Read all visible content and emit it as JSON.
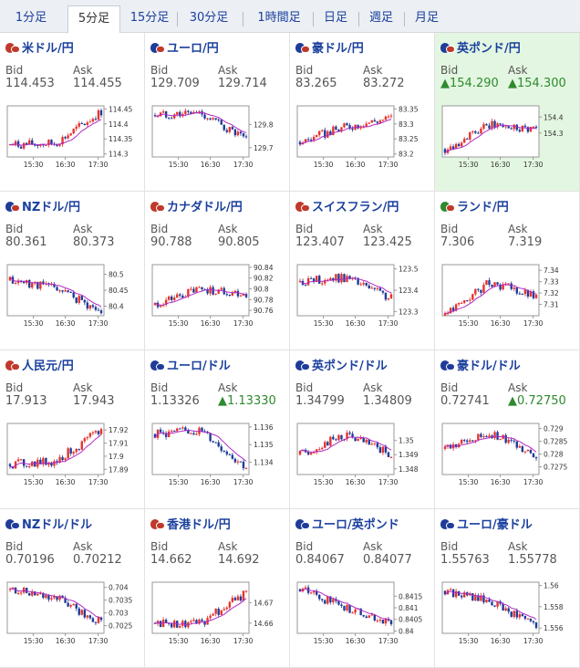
{
  "tabs": [
    {
      "label": "1分足",
      "active": false
    },
    {
      "label": "5分足",
      "active": true
    },
    {
      "label": "15分足",
      "active": false
    },
    {
      "label": "30分足",
      "active": false
    },
    {
      "label": "1時間足",
      "active": false
    },
    {
      "label": "日足",
      "active": false
    },
    {
      "label": "週足",
      "active": false
    },
    {
      "label": "月足",
      "active": false
    }
  ],
  "bid_label": "Bid",
  "ask_label": "Ask",
  "colors": {
    "up": "#e8322d",
    "down": "#1f3c99",
    "ma": "#b02bc4",
    "link": "#1a3f9e"
  },
  "x_ticks": [
    "15:30",
    "16:30",
    "17:30"
  ],
  "pairs": [
    {
      "name": "米ドル/円",
      "bid": "114.453",
      "ask": "114.455",
      "bid_up": false,
      "ask_up": false,
      "highlight": false,
      "flag": [
        "#c0392b",
        "#c0392b"
      ],
      "y_ticks": [
        "114.45",
        "114.4",
        "114.35",
        "114.3"
      ],
      "chart_data": {
        "type": "line",
        "x": [
          "15:30",
          "16:30",
          "17:30"
        ],
        "y": [
          114.33,
          114.335,
          114.44
        ],
        "ylim": [
          114.29,
          114.46
        ]
      }
    },
    {
      "name": "ユーロ/円",
      "bid": "129.709",
      "ask": "129.714",
      "bid_up": false,
      "ask_up": false,
      "highlight": false,
      "flag": [
        "#1f3c99",
        "#c0392b"
      ],
      "y_ticks": [
        "129.8",
        "129.7"
      ],
      "chart_data": {
        "type": "line",
        "x": [
          "15:30",
          "16:30",
          "17:30"
        ],
        "y": [
          129.84,
          129.85,
          129.73
        ],
        "ylim": [
          129.66,
          129.88
        ]
      }
    },
    {
      "name": "豪ドル/円",
      "bid": "83.265",
      "ask": "83.272",
      "bid_up": false,
      "ask_up": false,
      "highlight": false,
      "flag": [
        "#1f3c99",
        "#c0392b"
      ],
      "y_ticks": [
        "83.35",
        "83.3",
        "83.25",
        "83.2"
      ],
      "chart_data": {
        "type": "line",
        "x": [
          "15:30",
          "16:30",
          "17:30"
        ],
        "y": [
          83.24,
          83.29,
          83.32
        ],
        "ylim": [
          83.19,
          83.36
        ]
      }
    },
    {
      "name": "英ポンド/円",
      "bid": "▲154.290",
      "ask": "▲154.300",
      "bid_up": true,
      "ask_up": true,
      "highlight": true,
      "flag": [
        "#1f3c99",
        "#c0392b"
      ],
      "y_ticks": [
        "154.4",
        "154.3"
      ],
      "chart_data": {
        "type": "line",
        "x": [
          "15:30",
          "16:30",
          "17:30"
        ],
        "y": [
          154.2,
          154.35,
          154.33
        ],
        "ylim": [
          154.15,
          154.47
        ]
      }
    },
    {
      "name": "NZドル/円",
      "bid": "80.361",
      "ask": "80.373",
      "bid_up": false,
      "ask_up": false,
      "highlight": false,
      "flag": [
        "#1f3c99",
        "#c0392b"
      ],
      "y_ticks": [
        "80.5",
        "80.45",
        "80.4"
      ],
      "chart_data": {
        "type": "line",
        "x": [
          "15:30",
          "16:30",
          "17:30"
        ],
        "y": [
          80.48,
          80.46,
          80.38
        ],
        "ylim": [
          80.37,
          80.53
        ]
      }
    },
    {
      "name": "カナダドル/円",
      "bid": "90.788",
      "ask": "90.805",
      "bid_up": false,
      "ask_up": false,
      "highlight": false,
      "flag": [
        "#c0392b",
        "#c0392b"
      ],
      "y_ticks": [
        "90.84",
        "90.82",
        "90.8",
        "90.78",
        "90.76"
      ],
      "chart_data": {
        "type": "line",
        "x": [
          "15:30",
          "16:30",
          "17:30"
        ],
        "y": [
          90.77,
          90.8,
          90.79
        ],
        "ylim": [
          90.75,
          90.845
        ]
      }
    },
    {
      "name": "スイスフラン/円",
      "bid": "123.407",
      "ask": "123.425",
      "bid_up": false,
      "ask_up": false,
      "highlight": false,
      "flag": [
        "#c0392b",
        "#c0392b"
      ],
      "y_ticks": [
        "123.5",
        "123.4",
        "123.3"
      ],
      "chart_data": {
        "type": "line",
        "x": [
          "15:30",
          "16:30",
          "17:30"
        ],
        "y": [
          123.44,
          123.46,
          123.36
        ],
        "ylim": [
          123.28,
          123.52
        ]
      }
    },
    {
      "name": "ランド/円",
      "bid": "7.306",
      "ask": "7.319",
      "bid_up": false,
      "ask_up": false,
      "highlight": false,
      "flag": [
        "#2e8a2e",
        "#c0392b"
      ],
      "y_ticks": [
        "7.34",
        "7.33",
        "7.32",
        "7.31"
      ],
      "chart_data": {
        "type": "line",
        "x": [
          "15:30",
          "16:30",
          "17:30"
        ],
        "y": [
          7.3,
          7.33,
          7.316
        ],
        "ylim": [
          7.3,
          7.345
        ]
      }
    },
    {
      "name": "人民元/円",
      "bid": "17.913",
      "ask": "17.943",
      "bid_up": false,
      "ask_up": false,
      "highlight": false,
      "flag": [
        "#c0392b",
        "#c0392b"
      ],
      "y_ticks": [
        "17.92",
        "17.91",
        "17.9",
        "17.89"
      ],
      "chart_data": {
        "type": "line",
        "x": [
          "15:30",
          "16:30",
          "17:30"
        ],
        "y": [
          17.894,
          17.896,
          17.92
        ],
        "ylim": [
          17.886,
          17.925
        ]
      }
    },
    {
      "name": "ユーロ/ドル",
      "bid": "1.13326",
      "ask": "▲1.13330",
      "bid_up": false,
      "ask_up": true,
      "highlight": false,
      "flag": [
        "#1f3c99",
        "#1f3c99"
      ],
      "y_ticks": [
        "1.136",
        "1.135",
        "1.134"
      ],
      "chart_data": {
        "type": "line",
        "x": [
          "15:30",
          "16:30",
          "17:30"
        ],
        "y": [
          1.1356,
          1.1358,
          1.1337
        ],
        "ylim": [
          1.1333,
          1.1362
        ]
      }
    },
    {
      "name": "英ポンド/ドル",
      "bid": "1.34799",
      "ask": "1.34809",
      "bid_up": false,
      "ask_up": false,
      "highlight": false,
      "flag": [
        "#1f3c99",
        "#1f3c99"
      ],
      "y_ticks": [
        "1.35",
        "1.349",
        "1.348"
      ],
      "chart_data": {
        "type": "line",
        "x": [
          "15:30",
          "16:30",
          "17:30"
        ],
        "y": [
          1.349,
          1.3504,
          1.349
        ],
        "ylim": [
          1.3476,
          1.3512
        ]
      }
    },
    {
      "name": "豪ドル/ドル",
      "bid": "0.72741",
      "ask": "▲0.72750",
      "bid_up": false,
      "ask_up": true,
      "highlight": false,
      "flag": [
        "#1f3c99",
        "#1f3c99"
      ],
      "y_ticks": [
        "0.729",
        "0.7285",
        "0.728",
        "0.7275"
      ],
      "chart_data": {
        "type": "line",
        "x": [
          "15:30",
          "16:30",
          "17:30"
        ],
        "y": [
          0.7282,
          0.7288,
          0.728
        ],
        "ylim": [
          0.7272,
          0.7292
        ]
      }
    },
    {
      "name": "NZドル/ドル",
      "bid": "0.70196",
      "ask": "0.70212",
      "bid_up": false,
      "ask_up": false,
      "highlight": false,
      "flag": [
        "#1f3c99",
        "#1f3c99"
      ],
      "y_ticks": [
        "0.704",
        "0.7035",
        "0.703",
        "0.7025"
      ],
      "chart_data": {
        "type": "line",
        "x": [
          "15:30",
          "16:30",
          "17:30"
        ],
        "y": [
          0.7039,
          0.7036,
          0.7026
        ],
        "ylim": [
          0.7022,
          0.7042
        ]
      }
    },
    {
      "name": "香港ドル/円",
      "bid": "14.662",
      "ask": "14.692",
      "bid_up": false,
      "ask_up": false,
      "highlight": false,
      "flag": [
        "#c0392b",
        "#c0392b"
      ],
      "y_ticks": [
        "14.67",
        "14.66"
      ],
      "chart_data": {
        "type": "line",
        "x": [
          "15:30",
          "16:30",
          "17:30"
        ],
        "y": [
          14.66,
          14.66,
          14.675
        ],
        "ylim": [
          14.655,
          14.68
        ]
      }
    },
    {
      "name": "ユーロ/英ポンド",
      "bid": "0.84067",
      "ask": "0.84077",
      "bid_up": false,
      "ask_up": false,
      "highlight": false,
      "flag": [
        "#1f3c99",
        "#1f3c99"
      ],
      "y_ticks": [
        "0.8415",
        "0.841",
        "0.8405",
        "0.84"
      ],
      "chart_data": {
        "type": "line",
        "x": [
          "15:30",
          "16:30",
          "17:30"
        ],
        "y": [
          0.8418,
          0.841,
          0.8403
        ],
        "ylim": [
          0.8399,
          0.8421
        ]
      }
    },
    {
      "name": "ユーロ/豪ドル",
      "bid": "1.55763",
      "ask": "1.55778",
      "bid_up": false,
      "ask_up": false,
      "highlight": false,
      "flag": [
        "#1f3c99",
        "#1f3c99"
      ],
      "y_ticks": [
        "1.56",
        "1.558",
        "1.556"
      ],
      "chart_data": {
        "type": "line",
        "x": [
          "15:30",
          "16:30",
          "17:30"
        ],
        "y": [
          1.5595,
          1.5585,
          1.5562
        ],
        "ylim": [
          1.5555,
          1.5603
        ]
      }
    }
  ]
}
